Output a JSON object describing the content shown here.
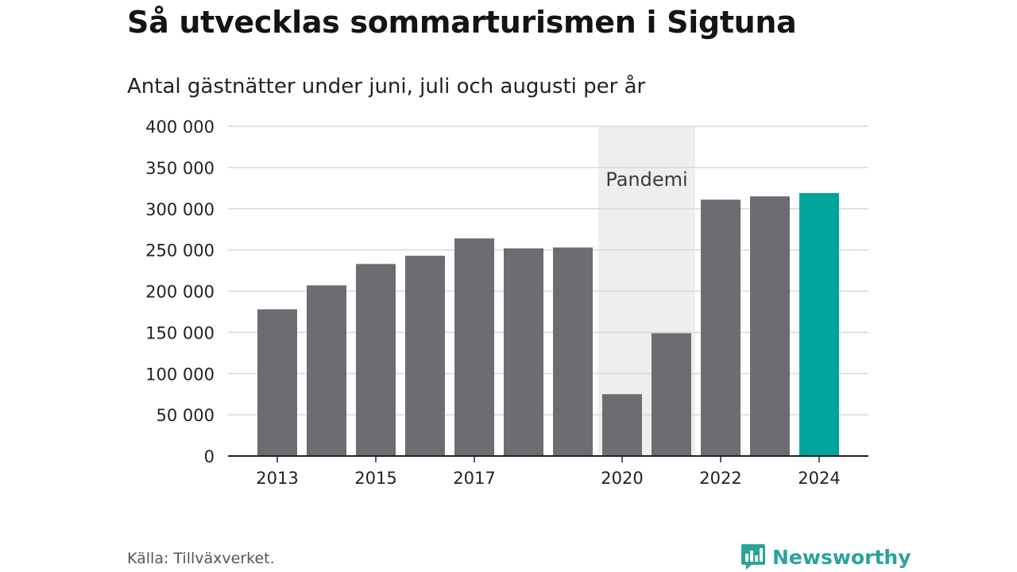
{
  "header": {
    "title": "Så utvecklas sommarturismen i Sigtuna",
    "subtitle": "Antal gästnätter under juni, juli och augusti per år"
  },
  "footer": {
    "source": "Källa: Tillväxverket.",
    "brand": "Newsworthy"
  },
  "colors": {
    "bar": "#6d6c72",
    "highlight": "#00a49a",
    "shade": "#eeeeee",
    "grid": "#d9d9d9",
    "axis": "#222222",
    "brand": "#2aa39a"
  },
  "chart_data": {
    "type": "bar",
    "x": [
      2013,
      2014,
      2015,
      2016,
      2017,
      2018,
      2019,
      2020,
      2021,
      2022,
      2023,
      2024
    ],
    "values": [
      178000,
      207000,
      233000,
      243000,
      264000,
      252000,
      253000,
      75000,
      149000,
      311000,
      315000,
      319000
    ],
    "highlight": [
      2024
    ],
    "x_tick_labels": [
      "2013",
      "2015",
      "2017",
      "2020",
      "2022",
      "2024"
    ],
    "y_ticks": [
      0,
      50000,
      100000,
      150000,
      200000,
      250000,
      300000,
      350000,
      400000
    ],
    "y_tick_labels": [
      "0",
      "50 000",
      "100 000",
      "150 000",
      "200 000",
      "250 000",
      "300 000",
      "350 000",
      "400 000"
    ],
    "ylim": [
      0,
      400000
    ],
    "grid": true,
    "shaded_region": {
      "from": 2020,
      "to": 2021,
      "label": "Pandemi"
    }
  }
}
